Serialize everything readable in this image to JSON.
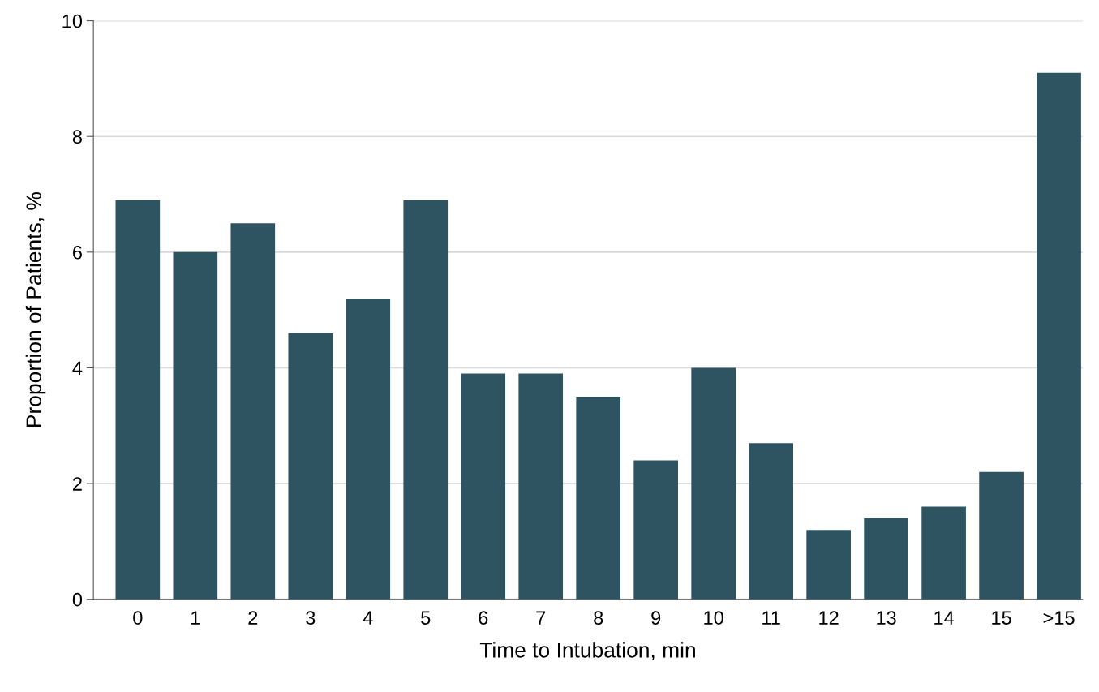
{
  "chart_data": {
    "type": "bar",
    "xlabel": "Time to Intubation, min",
    "ylabel": "Proportion of Patients, %",
    "categories": [
      "0",
      "1",
      "2",
      "3",
      "4",
      "5",
      "6",
      "7",
      "8",
      "9",
      "10",
      "11",
      "12",
      "13",
      "14",
      "15",
      ">15"
    ],
    "values": [
      6.9,
      6.0,
      6.5,
      4.6,
      5.2,
      6.9,
      3.9,
      3.9,
      3.5,
      2.4,
      4.0,
      2.7,
      1.2,
      1.4,
      1.6,
      2.2,
      9.1
    ],
    "color": "#2e5461",
    "ylim": [
      0,
      10
    ],
    "yticks": [
      0,
      2,
      4,
      6,
      8,
      10
    ],
    "grid": "y"
  }
}
